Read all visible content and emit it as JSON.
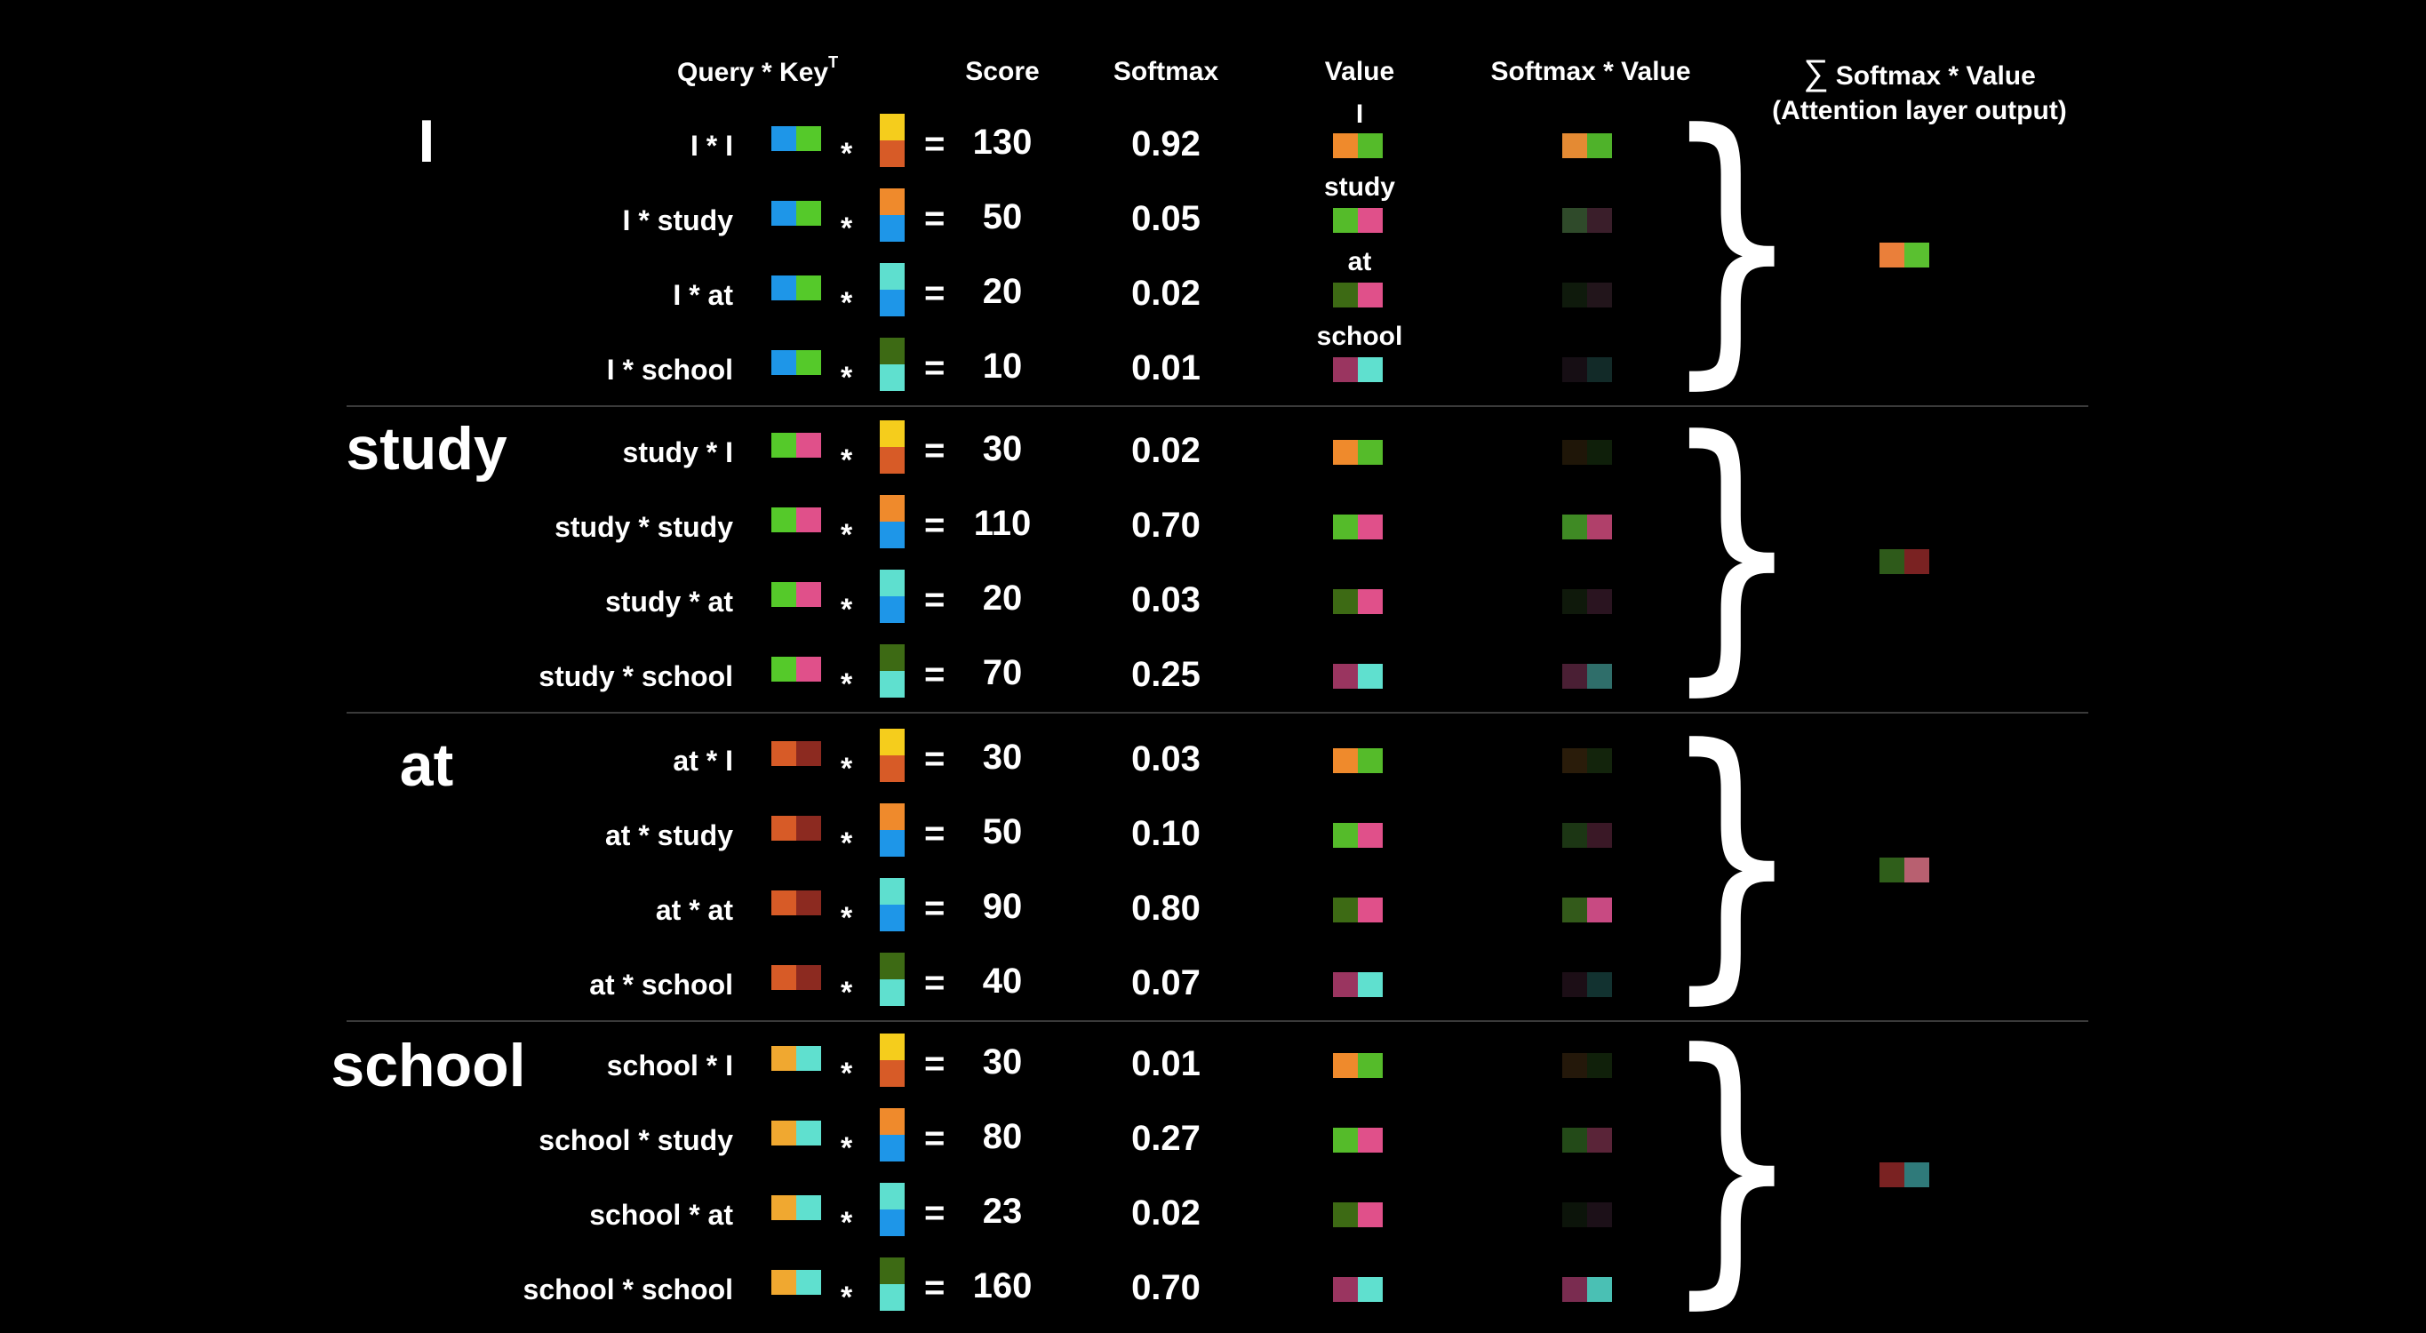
{
  "headers": {
    "query_key": "Query * Key",
    "query_key_sup": "T",
    "score": "Score",
    "softmax": "Softmax",
    "value": "Value",
    "softmax_value": "Softmax * Value",
    "sum_symbol": "∑",
    "sum_title": "Softmax * Value",
    "sum_subtitle": "(Attention layer output)"
  },
  "colors": {
    "key_I": [
      "#f5cd1c",
      "#d75b27"
    ],
    "key_study": [
      "#ef8a2c",
      "#1e96e8"
    ],
    "key_at": [
      "#5edfcf",
      "#1e96e8"
    ],
    "key_school": [
      "#3d6a14",
      "#5fe0cf"
    ],
    "value_I": [
      "#ef8a2c",
      "#55bb2a"
    ],
    "value_study": [
      "#55bb2a",
      "#e0508a"
    ],
    "value_at": [
      "#3d6a14",
      "#e0508a"
    ],
    "value_school": [
      "#9a3560",
      "#5fe0cf"
    ]
  },
  "groups": [
    {
      "word": "I",
      "query": [
        "#1e96e8",
        "#55c92a"
      ],
      "output": [
        "#ea7f3a",
        "#5ac030"
      ],
      "rows": [
        {
          "label": "I * I",
          "key": "I",
          "score": "130",
          "softmax": "0.92",
          "value": "I",
          "sv": [
            "#e48a33",
            "#4fb22a"
          ]
        },
        {
          "label": "I * study",
          "key": "study",
          "score": "50",
          "softmax": "0.05",
          "value": "study",
          "sv": [
            "#2f4a2a",
            "#3a1e2a"
          ]
        },
        {
          "label": "I * at",
          "key": "at",
          "score": "20",
          "softmax": "0.02",
          "value": "at",
          "sv": [
            "#0f1a0c",
            "#22151b"
          ]
        },
        {
          "label": "I * school",
          "key": "school",
          "score": "10",
          "softmax": "0.01",
          "value": "school",
          "sv": [
            "#160e14",
            "#122a28"
          ]
        }
      ]
    },
    {
      "word": "study",
      "query": [
        "#55c92a",
        "#e0508a"
      ],
      "output": [
        "#2e5a1a",
        "#7a2222"
      ],
      "rows": [
        {
          "label": "study * I",
          "key": "I",
          "score": "30",
          "softmax": "0.02",
          "value": "I",
          "sv": [
            "#1f1608",
            "#0f1f0a"
          ]
        },
        {
          "label": "study * study",
          "key": "study",
          "score": "110",
          "softmax": "0.70",
          "value": "study",
          "sv": [
            "#3f8a24",
            "#b0406a"
          ]
        },
        {
          "label": "study * at",
          "key": "at",
          "score": "20",
          "softmax": "0.03",
          "value": "at",
          "sv": [
            "#0f190b",
            "#2a1420"
          ]
        },
        {
          "label": "study * school",
          "key": "school",
          "score": "70",
          "softmax": "0.25",
          "value": "school",
          "sv": [
            "#4a1f34",
            "#2f6e6a"
          ]
        }
      ]
    },
    {
      "word": "at",
      "query": [
        "#d75b27",
        "#8c2a20"
      ],
      "output": [
        "#2f5e1a",
        "#b86070"
      ],
      "rows": [
        {
          "label": "at * I",
          "key": "I",
          "score": "30",
          "softmax": "0.03",
          "value": "I",
          "sv": [
            "#2a1c0a",
            "#13240c"
          ]
        },
        {
          "label": "at * study",
          "key": "study",
          "score": "50",
          "softmax": "0.10",
          "value": "study",
          "sv": [
            "#1c3614",
            "#3a1826"
          ]
        },
        {
          "label": "at * at",
          "key": "at",
          "score": "90",
          "softmax": "0.80",
          "value": "at",
          "sv": [
            "#335a1a",
            "#c84a82"
          ]
        },
        {
          "label": "at * school",
          "key": "school",
          "score": "40",
          "softmax": "0.07",
          "value": "school",
          "sv": [
            "#1c0e16",
            "#123230"
          ]
        }
      ]
    },
    {
      "word": "school",
      "query": [
        "#f0a830",
        "#5fe0cf"
      ],
      "output": [
        "#7a2222",
        "#2f7a7a"
      ],
      "rows": [
        {
          "label": "school * I",
          "key": "I",
          "score": "30",
          "softmax": "0.01",
          "value": "I",
          "sv": [
            "#24180a",
            "#10200a"
          ]
        },
        {
          "label": "school * study",
          "key": "study",
          "score": "80",
          "softmax": "0.27",
          "value": "study",
          "sv": [
            "#234a18",
            "#5a2438"
          ]
        },
        {
          "label": "school * at",
          "key": "at",
          "score": "23",
          "softmax": "0.02",
          "value": "at",
          "sv": [
            "#0c140a",
            "#1c1018"
          ]
        },
        {
          "label": "school * school",
          "key": "school",
          "score": "160",
          "softmax": "0.70",
          "value": "school",
          "sv": [
            "#7a2c50",
            "#4ac0b4"
          ]
        }
      ]
    }
  ]
}
